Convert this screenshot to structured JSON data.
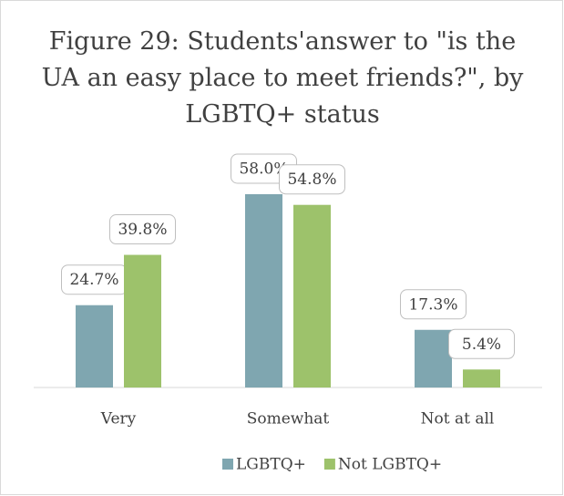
{
  "chart_data": {
    "type": "bar",
    "title": "Figure 29: Students'answer to  \"is the UA an easy place to meet friends?\", by LGBTQ+ status",
    "categories": [
      "Very",
      "Somewhat",
      "Not at all"
    ],
    "series": [
      {
        "name": "LGBTQ+",
        "color": "#7fa6b0",
        "values": [
          24.7,
          58.0,
          17.3
        ],
        "value_labels": [
          "24.7%",
          "58.0%",
          "17.3%"
        ]
      },
      {
        "name": "Not LGBTQ+",
        "color": "#9dc26b",
        "values": [
          39.8,
          54.8,
          5.4
        ],
        "value_labels": [
          "39.8%",
          "54.8%",
          "5.4%"
        ]
      }
    ],
    "legend": "bottom"
  }
}
